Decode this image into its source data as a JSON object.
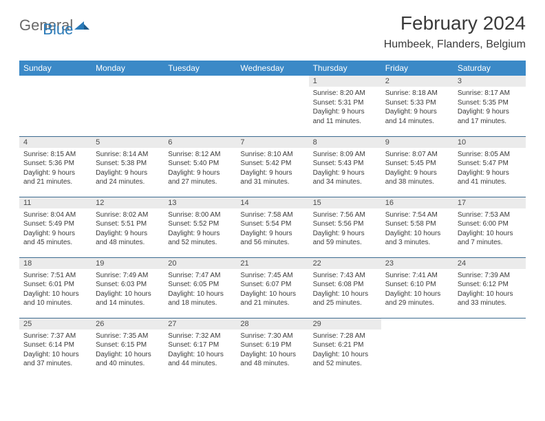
{
  "brand": {
    "part1": "General",
    "part2": "Blue"
  },
  "title": "February 2024",
  "location": "Humbeek, Flanders, Belgium",
  "colors": {
    "header_bg": "#3b89c7",
    "header_text": "#ffffff",
    "daynum_bg": "#ebebeb",
    "border": "#3b6a8f",
    "brand_gray": "#6a6a6a",
    "brand_blue": "#2a7ab8",
    "text": "#3a3a3a"
  },
  "day_headers": [
    "Sunday",
    "Monday",
    "Tuesday",
    "Wednesday",
    "Thursday",
    "Friday",
    "Saturday"
  ],
  "weeks": [
    [
      null,
      null,
      null,
      null,
      {
        "n": "1",
        "sr": "8:20 AM",
        "ss": "5:31 PM",
        "dl": "9 hours and 11 minutes."
      },
      {
        "n": "2",
        "sr": "8:18 AM",
        "ss": "5:33 PM",
        "dl": "9 hours and 14 minutes."
      },
      {
        "n": "3",
        "sr": "8:17 AM",
        "ss": "5:35 PM",
        "dl": "9 hours and 17 minutes."
      }
    ],
    [
      {
        "n": "4",
        "sr": "8:15 AM",
        "ss": "5:36 PM",
        "dl": "9 hours and 21 minutes."
      },
      {
        "n": "5",
        "sr": "8:14 AM",
        "ss": "5:38 PM",
        "dl": "9 hours and 24 minutes."
      },
      {
        "n": "6",
        "sr": "8:12 AM",
        "ss": "5:40 PM",
        "dl": "9 hours and 27 minutes."
      },
      {
        "n": "7",
        "sr": "8:10 AM",
        "ss": "5:42 PM",
        "dl": "9 hours and 31 minutes."
      },
      {
        "n": "8",
        "sr": "8:09 AM",
        "ss": "5:43 PM",
        "dl": "9 hours and 34 minutes."
      },
      {
        "n": "9",
        "sr": "8:07 AM",
        "ss": "5:45 PM",
        "dl": "9 hours and 38 minutes."
      },
      {
        "n": "10",
        "sr": "8:05 AM",
        "ss": "5:47 PM",
        "dl": "9 hours and 41 minutes."
      }
    ],
    [
      {
        "n": "11",
        "sr": "8:04 AM",
        "ss": "5:49 PM",
        "dl": "9 hours and 45 minutes."
      },
      {
        "n": "12",
        "sr": "8:02 AM",
        "ss": "5:51 PM",
        "dl": "9 hours and 48 minutes."
      },
      {
        "n": "13",
        "sr": "8:00 AM",
        "ss": "5:52 PM",
        "dl": "9 hours and 52 minutes."
      },
      {
        "n": "14",
        "sr": "7:58 AM",
        "ss": "5:54 PM",
        "dl": "9 hours and 56 minutes."
      },
      {
        "n": "15",
        "sr": "7:56 AM",
        "ss": "5:56 PM",
        "dl": "9 hours and 59 minutes."
      },
      {
        "n": "16",
        "sr": "7:54 AM",
        "ss": "5:58 PM",
        "dl": "10 hours and 3 minutes."
      },
      {
        "n": "17",
        "sr": "7:53 AM",
        "ss": "6:00 PM",
        "dl": "10 hours and 7 minutes."
      }
    ],
    [
      {
        "n": "18",
        "sr": "7:51 AM",
        "ss": "6:01 PM",
        "dl": "10 hours and 10 minutes."
      },
      {
        "n": "19",
        "sr": "7:49 AM",
        "ss": "6:03 PM",
        "dl": "10 hours and 14 minutes."
      },
      {
        "n": "20",
        "sr": "7:47 AM",
        "ss": "6:05 PM",
        "dl": "10 hours and 18 minutes."
      },
      {
        "n": "21",
        "sr": "7:45 AM",
        "ss": "6:07 PM",
        "dl": "10 hours and 21 minutes."
      },
      {
        "n": "22",
        "sr": "7:43 AM",
        "ss": "6:08 PM",
        "dl": "10 hours and 25 minutes."
      },
      {
        "n": "23",
        "sr": "7:41 AM",
        "ss": "6:10 PM",
        "dl": "10 hours and 29 minutes."
      },
      {
        "n": "24",
        "sr": "7:39 AM",
        "ss": "6:12 PM",
        "dl": "10 hours and 33 minutes."
      }
    ],
    [
      {
        "n": "25",
        "sr": "7:37 AM",
        "ss": "6:14 PM",
        "dl": "10 hours and 37 minutes."
      },
      {
        "n": "26",
        "sr": "7:35 AM",
        "ss": "6:15 PM",
        "dl": "10 hours and 40 minutes."
      },
      {
        "n": "27",
        "sr": "7:32 AM",
        "ss": "6:17 PM",
        "dl": "10 hours and 44 minutes."
      },
      {
        "n": "28",
        "sr": "7:30 AM",
        "ss": "6:19 PM",
        "dl": "10 hours and 48 minutes."
      },
      {
        "n": "29",
        "sr": "7:28 AM",
        "ss": "6:21 PM",
        "dl": "10 hours and 52 minutes."
      },
      null,
      null
    ]
  ],
  "labels": {
    "sunrise": "Sunrise:",
    "sunset": "Sunset:",
    "daylight": "Daylight:"
  }
}
